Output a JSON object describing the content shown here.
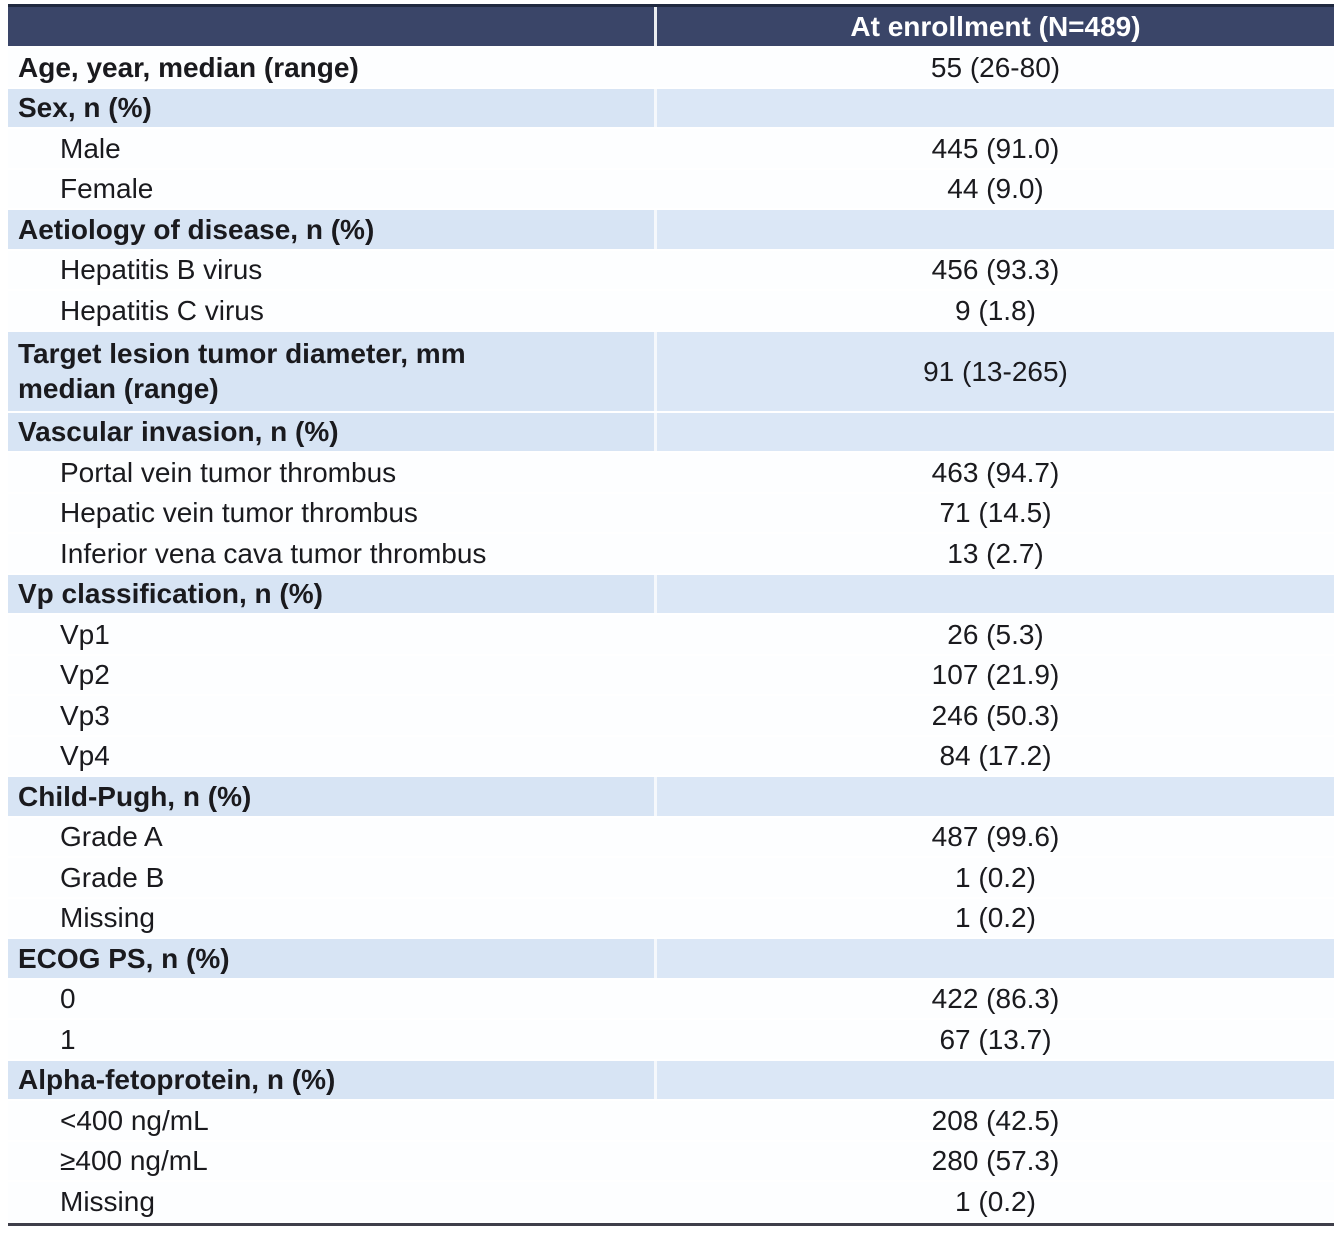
{
  "table": {
    "header": {
      "col1": "",
      "col2": "At enrollment (N=489)"
    },
    "rows": [
      {
        "type": "metric",
        "label": "Age, year, median (range)",
        "value": "55 (26-80)"
      },
      {
        "type": "section",
        "label": "Sex, n (%)",
        "value": ""
      },
      {
        "type": "item",
        "label": "Male",
        "value": "445 (91.0)"
      },
      {
        "type": "item",
        "label": "Female",
        "value": "44 (9.0)"
      },
      {
        "type": "section",
        "label": "Aetiology of disease, n (%)",
        "value": ""
      },
      {
        "type": "item",
        "label": "Hepatitis B virus",
        "value": "456 (93.3)"
      },
      {
        "type": "item",
        "label": "Hepatitis C virus",
        "value": "9 (1.8)"
      },
      {
        "type": "metric-highlight",
        "label": [
          "Target lesion tumor diameter, mm",
          "median (range)"
        ],
        "value": "91 (13-265)"
      },
      {
        "type": "section",
        "label": "Vascular invasion, n (%)",
        "value": ""
      },
      {
        "type": "item",
        "label": "Portal vein tumor thrombus",
        "value": "463 (94.7)"
      },
      {
        "type": "item",
        "label": "Hepatic vein tumor thrombus",
        "value": "71 (14.5)"
      },
      {
        "type": "item",
        "label": "Inferior vena cava tumor thrombus",
        "value": "13 (2.7)"
      },
      {
        "type": "section",
        "label": "Vp classification, n (%)",
        "value": ""
      },
      {
        "type": "item",
        "label": "Vp1",
        "value": "26 (5.3)"
      },
      {
        "type": "item",
        "label": "Vp2",
        "value": "107 (21.9)"
      },
      {
        "type": "item",
        "label": "Vp3",
        "value": "246 (50.3)"
      },
      {
        "type": "item",
        "label": "Vp4",
        "value": "84 (17.2)"
      },
      {
        "type": "section",
        "label": "Child-Pugh, n (%)",
        "value": ""
      },
      {
        "type": "item",
        "label": "Grade A",
        "value": "487 (99.6)"
      },
      {
        "type": "item",
        "label": "Grade B",
        "value": "1 (0.2)"
      },
      {
        "type": "item",
        "label": "Missing",
        "value": "1 (0.2)"
      },
      {
        "type": "section",
        "label": "ECOG PS, n (%)",
        "value": ""
      },
      {
        "type": "item",
        "label": "0",
        "value": "422 (86.3)"
      },
      {
        "type": "item",
        "label": "1",
        "value": "67 (13.7)"
      },
      {
        "type": "section",
        "label": "Alpha-fetoprotein, n (%)",
        "value": ""
      },
      {
        "type": "item",
        "label": "<400 ng/mL",
        "value": "208 (42.5)"
      },
      {
        "type": "item",
        "label": "≥400 ng/mL",
        "value": "280 (57.3)"
      },
      {
        "type": "item",
        "label": "Missing",
        "value": "1 (0.2)"
      }
    ]
  },
  "colors": {
    "header_bg": "#3A4568",
    "header_text": "#FFFFFF",
    "section_bg_left": "#D7E4F4",
    "section_bg_right": "#DBE7F6",
    "row_bg": "#FDFEFF",
    "text": "#1A1A1E",
    "top_border": "#20293F",
    "bottom_border": "#3F3F4A"
  }
}
